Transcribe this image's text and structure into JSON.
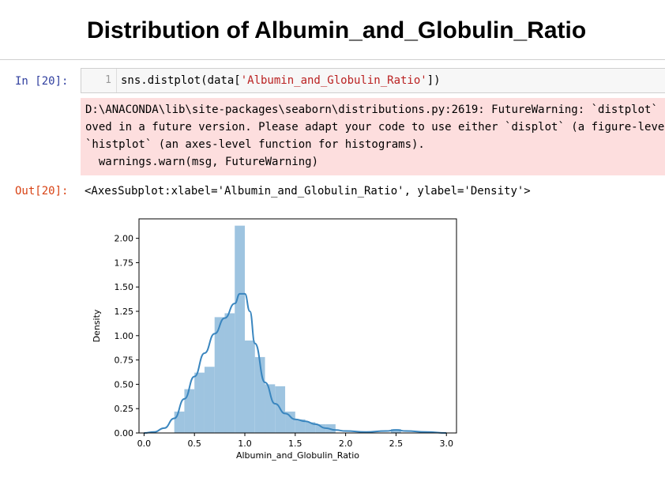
{
  "notebook": {
    "heading": "Distribution of Albumin_and_Globulin_Ratio",
    "in_prompt": "In [20]:",
    "out_prompt": "Out[20]:",
    "line_number": "1",
    "code_prefix": "sns.distplot(data[",
    "code_string": "'Albumin_and_Globulin_Ratio'",
    "code_suffix": "])",
    "stderr_lines": [
      "D:\\ANACONDA\\lib\\site-packages\\seaborn\\distributions.py:2619: FutureWarning: `distplot` is a deprecated function and will be rem",
      "oved in a future version. Please adapt your code to use either `displot` (a figure-level function with similar flexibility) or",
      "`histplot` (an axes-level function for histograms).",
      "  warnings.warn(msg, FutureWarning)"
    ],
    "output_text": "<AxesSubplot:xlabel='Albumin_and_Globulin_Ratio', ylabel='Density'>"
  },
  "chart_data": {
    "type": "bar",
    "xlabel": "Albumin_and_Globulin_Ratio",
    "ylabel": "Density",
    "xlim": [
      -0.05,
      3.1
    ],
    "ylim": [
      0,
      2.2
    ],
    "xticks": [
      "0.0",
      "0.5",
      "1.0",
      "1.5",
      "2.0",
      "2.5",
      "3.0"
    ],
    "yticks": [
      "0.00",
      "0.25",
      "0.50",
      "0.75",
      "1.00",
      "1.25",
      "1.50",
      "1.75",
      "2.00"
    ],
    "bar_color": "#9ec4e0",
    "kde_color": "#3a86bf",
    "bins": [
      {
        "x0": 0.3,
        "x1": 0.4,
        "value": 0.22
      },
      {
        "x0": 0.4,
        "x1": 0.5,
        "value": 0.45
      },
      {
        "x0": 0.5,
        "x1": 0.6,
        "value": 0.62
      },
      {
        "x0": 0.6,
        "x1": 0.7,
        "value": 0.68
      },
      {
        "x0": 0.7,
        "x1": 0.8,
        "value": 1.19
      },
      {
        "x0": 0.8,
        "x1": 0.9,
        "value": 1.23
      },
      {
        "x0": 0.9,
        "x1": 1.0,
        "value": 2.13
      },
      {
        "x0": 1.0,
        "x1": 1.1,
        "value": 0.95
      },
      {
        "x0": 1.1,
        "x1": 1.2,
        "value": 0.78
      },
      {
        "x0": 1.2,
        "x1": 1.3,
        "value": 0.5
      },
      {
        "x0": 1.3,
        "x1": 1.4,
        "value": 0.48
      },
      {
        "x0": 1.4,
        "x1": 1.5,
        "value": 0.22
      },
      {
        "x0": 1.5,
        "x1": 1.6,
        "value": 0.14
      },
      {
        "x0": 1.6,
        "x1": 1.7,
        "value": 0.11
      },
      {
        "x0": 1.7,
        "x1": 1.8,
        "value": 0.09
      },
      {
        "x0": 1.8,
        "x1": 1.9,
        "value": 0.09
      },
      {
        "x0": 2.45,
        "x1": 2.55,
        "value": 0.04
      }
    ],
    "kde": {
      "x": [
        0.0,
        0.1,
        0.2,
        0.3,
        0.4,
        0.5,
        0.6,
        0.7,
        0.8,
        0.9,
        0.95,
        1.0,
        1.05,
        1.1,
        1.2,
        1.3,
        1.4,
        1.5,
        1.6,
        1.7,
        1.8,
        1.9,
        2.0,
        2.2,
        2.4,
        2.5,
        2.6,
        2.8,
        3.0
      ],
      "y": [
        0.0,
        0.01,
        0.05,
        0.15,
        0.35,
        0.58,
        0.82,
        1.02,
        1.18,
        1.33,
        1.43,
        1.43,
        1.25,
        0.92,
        0.52,
        0.3,
        0.2,
        0.14,
        0.12,
        0.09,
        0.05,
        0.03,
        0.02,
        0.01,
        0.02,
        0.03,
        0.02,
        0.01,
        0.0
      ]
    }
  }
}
